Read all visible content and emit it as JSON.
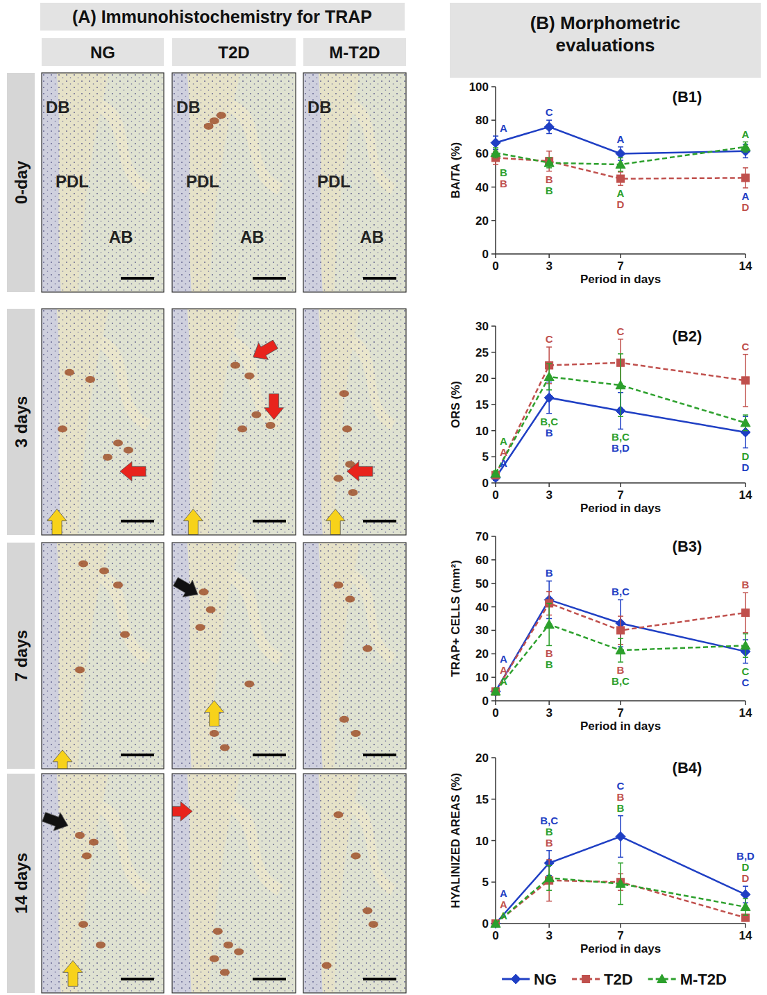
{
  "figure": {
    "panel_a": {
      "title": "(A) Immunohistochemistry for TRAP",
      "columns": [
        "NG",
        "T2D",
        "M-T2D"
      ],
      "rows": [
        "0-day",
        "3 days",
        "7 days",
        "14 days"
      ],
      "tissue_labels": [
        "DB",
        "PDL",
        "AB"
      ]
    },
    "panel_b": {
      "title": "(B) Morphometric evaluations"
    }
  },
  "chart_data": [
    {
      "type": "line",
      "title": "(B1)",
      "x_label": "Period in days",
      "y_label": "BA/TA (%)",
      "x": [
        0,
        3,
        7,
        14
      ],
      "xlim": [
        0,
        14
      ],
      "xticks": [
        0,
        3,
        7,
        14
      ],
      "ylim": [
        0,
        100
      ],
      "yticks": [
        0,
        20,
        40,
        60,
        80,
        100
      ],
      "grid": false,
      "series": [
        {
          "name": "NG",
          "color": "#1f3fc4",
          "marker": "diamond",
          "line_style": "solid",
          "values": [
            66.5,
            76,
            60,
            61.5
          ],
          "errors": [
            4,
            4,
            4,
            4
          ],
          "letters": [
            "A",
            "C",
            "A",
            "A"
          ]
        },
        {
          "name": "T2D",
          "color": "#c0504d",
          "marker": "square",
          "line_style": "dashed",
          "values": [
            57.5,
            55.5,
            45,
            45.5
          ],
          "errors": [
            4,
            6,
            4,
            6
          ],
          "letters": [
            "B",
            "B",
            "D",
            "D"
          ]
        },
        {
          "name": "M-T2D",
          "color": "#2ca02c",
          "marker": "triangle",
          "line_style": "dashed",
          "values": [
            60.5,
            54.5,
            53.5,
            64
          ],
          "errors": [
            3,
            3,
            4,
            3
          ],
          "letters": [
            "B",
            "B",
            "A",
            "A"
          ]
        }
      ]
    },
    {
      "type": "line",
      "title": "(B2)",
      "x_label": "Period in days",
      "y_label": "ORS (%)",
      "x": [
        0,
        3,
        7,
        14
      ],
      "xlim": [
        0,
        14
      ],
      "xticks": [
        0,
        3,
        7,
        14
      ],
      "ylim": [
        0,
        30
      ],
      "yticks": [
        0,
        5,
        10,
        15,
        20,
        25,
        30
      ],
      "grid": false,
      "series": [
        {
          "name": "NG",
          "color": "#1f3fc4",
          "marker": "diamond",
          "line_style": "solid",
          "values": [
            1,
            16.3,
            13.8,
            9.7
          ],
          "errors": [
            0.5,
            3,
            3.5,
            3
          ],
          "letters": [
            "A",
            "B",
            "B,D",
            "D"
          ]
        },
        {
          "name": "T2D",
          "color": "#c0504d",
          "marker": "square",
          "line_style": "dashed",
          "values": [
            1.5,
            22.5,
            23,
            19.6
          ],
          "errors": [
            0.5,
            3.5,
            4.5,
            5
          ],
          "letters": [
            "A",
            "C",
            "C",
            "C"
          ]
        },
        {
          "name": "M-T2D",
          "color": "#2ca02c",
          "marker": "triangle",
          "line_style": "dashed",
          "values": [
            1.8,
            20.3,
            18.7,
            11.5
          ],
          "errors": [
            0.5,
            2.5,
            6,
            1.5
          ],
          "letters": [
            "A",
            "B,C",
            "B,C",
            "D"
          ]
        }
      ]
    },
    {
      "type": "line",
      "title": "(B3)",
      "x_label": "Period in days",
      "y_label": "TRAP+ CELLS (mm²)",
      "x": [
        0,
        3,
        7,
        14
      ],
      "xlim": [
        0,
        14
      ],
      "xticks": [
        0,
        3,
        7,
        14
      ],
      "ylim": [
        0,
        70
      ],
      "yticks": [
        0,
        10,
        20,
        30,
        40,
        50,
        60,
        70
      ],
      "grid": false,
      "series": [
        {
          "name": "NG",
          "color": "#1f3fc4",
          "marker": "diamond",
          "line_style": "solid",
          "values": [
            4,
            43,
            33,
            21
          ],
          "errors": [
            1,
            8,
            10,
            5
          ],
          "letters": [
            "A",
            "B",
            "B,C",
            "C"
          ]
        },
        {
          "name": "T2D",
          "color": "#c0504d",
          "marker": "square",
          "line_style": "dashed",
          "values": [
            4,
            41.5,
            30,
            37.5
          ],
          "errors": [
            1,
            5,
            6,
            8.5
          ],
          "letters": [
            "A",
            "B",
            "B",
            "B"
          ]
        },
        {
          "name": "M-T2D",
          "color": "#2ca02c",
          "marker": "triangle",
          "line_style": "dashed",
          "values": [
            4,
            32.5,
            21.5,
            23.5
          ],
          "errors": [
            1,
            9,
            5,
            5
          ],
          "letters": [
            "A",
            "B",
            "B,C",
            "C"
          ]
        }
      ]
    },
    {
      "type": "line",
      "title": "(B4)",
      "x_label": "Period in days",
      "y_label": "HYALINIZED AREAS (%)",
      "x": [
        0,
        3,
        7,
        14
      ],
      "xlim": [
        0,
        14
      ],
      "xticks": [
        0,
        3,
        7,
        14
      ],
      "ylim": [
        0,
        20
      ],
      "yticks": [
        0,
        5,
        10,
        15,
        20
      ],
      "grid": false,
      "legend": "bottom",
      "series": [
        {
          "name": "NG",
          "color": "#1f3fc4",
          "marker": "diamond",
          "line_style": "solid",
          "values": [
            0,
            7.3,
            10.5,
            3.5
          ],
          "errors": [
            0,
            1.5,
            2.5,
            1
          ],
          "letters": [
            "A",
            "B,C",
            "C",
            "B,D"
          ]
        },
        {
          "name": "T2D",
          "color": "#c0504d",
          "marker": "square",
          "line_style": "dashed",
          "values": [
            0,
            5.2,
            5,
            0.7
          ],
          "errors": [
            0,
            2.5,
            1,
            0.3
          ],
          "letters": [
            "A",
            "B",
            "B",
            "D"
          ]
        },
        {
          "name": "M-T2D",
          "color": "#2ca02c",
          "marker": "triangle",
          "line_style": "dashed",
          "values": [
            0,
            5.5,
            4.8,
            2
          ],
          "errors": [
            0,
            1.5,
            2.5,
            1
          ],
          "letters": [
            "A",
            "B",
            "B",
            "D"
          ]
        }
      ]
    }
  ]
}
